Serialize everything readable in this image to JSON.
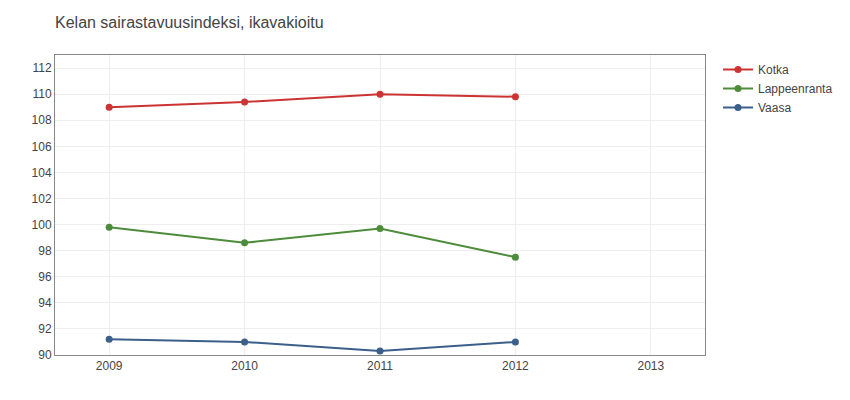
{
  "chart_data": {
    "type": "line",
    "title": "Kelan sairastavuusindeksi, ikavakioitu",
    "x": [
      2009,
      2010,
      2011,
      2012
    ],
    "series": [
      {
        "name": "Kotka",
        "color": "#cc3333",
        "values": [
          109.0,
          109.4,
          110.0,
          109.8
        ]
      },
      {
        "name": "Lappeenranta",
        "color": "#4d8c3a",
        "values": [
          99.8,
          98.6,
          99.7,
          97.5
        ]
      },
      {
        "name": "Vaasa",
        "color": "#3a5f8a",
        "values": [
          91.2,
          91.0,
          90.3,
          91.0
        ]
      }
    ],
    "xlim": [
      2008.6,
      2013.4
    ],
    "xticks": [
      2009,
      2010,
      2011,
      2012,
      2013
    ],
    "ylim": [
      90,
      113
    ],
    "yticks": [
      90,
      92,
      94,
      96,
      98,
      100,
      102,
      104,
      106,
      108,
      110,
      112
    ],
    "grid": true,
    "legend": "upper right",
    "marker": "circle"
  }
}
